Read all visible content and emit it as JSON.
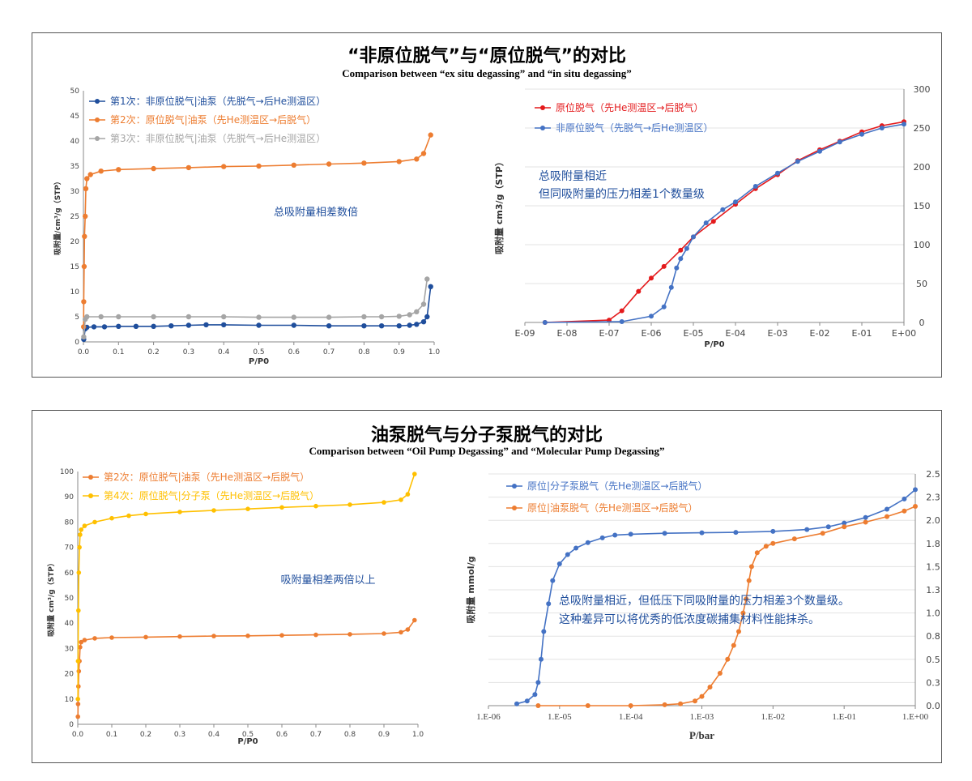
{
  "panels": [
    {
      "title_cn": "“非原位脱气”与“原位脱气”的对比",
      "title_en": "Comparison between “ex situ degassing” and “in situ degassing”"
    },
    {
      "title_cn": "油泵脱气与分子泵脱气的对比",
      "title_en": "Comparison between  “Oil Pump Degassing” and “Molecular Pump Degassing”"
    }
  ],
  "chart_data": [
    {
      "type": "line",
      "xlabel": "P/P0",
      "ylabel": "吸附量/cm³/g（STP）",
      "xlim": [
        0,
        1
      ],
      "ylim": [
        0,
        50
      ],
      "xticks": [
        "0.0",
        "0.1",
        "0.2",
        "0.3",
        "0.4",
        "0.5",
        "0.6",
        "0.7",
        "0.8",
        "0.9",
        "1.0"
      ],
      "yticks": [
        "0",
        "5",
        "10",
        "15",
        "20",
        "25",
        "30",
        "35",
        "40",
        "45",
        "50"
      ],
      "legend_position": "top-left",
      "annotation": "总吸附量相差数倍",
      "series": [
        {
          "name": "第1次：非原位脱气|油泵（先脱气→后He测温区）",
          "color": "#1f4e9c",
          "x": [
            0.001,
            0.005,
            0.01,
            0.03,
            0.06,
            0.1,
            0.15,
            0.2,
            0.25,
            0.3,
            0.35,
            0.4,
            0.5,
            0.6,
            0.7,
            0.8,
            0.85,
            0.9,
            0.93,
            0.95,
            0.97,
            0.98,
            0.99
          ],
          "y": [
            0.5,
            2.6,
            2.9,
            3.0,
            3.0,
            3.1,
            3.1,
            3.1,
            3.2,
            3.3,
            3.4,
            3.4,
            3.3,
            3.3,
            3.2,
            3.2,
            3.2,
            3.2,
            3.3,
            3.5,
            4.0,
            5.0,
            11.0
          ]
        },
        {
          "name": "第2次：原位脱气|油泵（先He测温区→后脱气）",
          "color": "#ed7d31",
          "x": [
            0.0005,
            0.001,
            0.002,
            0.003,
            0.005,
            0.007,
            0.01,
            0.02,
            0.05,
            0.1,
            0.2,
            0.3,
            0.4,
            0.5,
            0.6,
            0.7,
            0.8,
            0.9,
            0.95,
            0.97,
            0.99
          ],
          "y": [
            3.0,
            8.0,
            15.0,
            21.0,
            25.0,
            30.5,
            32.5,
            33.3,
            34.0,
            34.3,
            34.5,
            34.7,
            34.9,
            35.0,
            35.2,
            35.4,
            35.6,
            35.9,
            36.4,
            37.5,
            41.2
          ]
        },
        {
          "name": "第3次：非原位脱气|油泵（先脱气→后He测温区）",
          "color": "#a5a5a5",
          "x": [
            0.001,
            0.005,
            0.01,
            0.05,
            0.1,
            0.2,
            0.3,
            0.4,
            0.5,
            0.6,
            0.7,
            0.8,
            0.85,
            0.9,
            0.93,
            0.95,
            0.97,
            0.98
          ],
          "y": [
            1.0,
            4.5,
            5.0,
            5.0,
            5.0,
            5.0,
            5.0,
            5.0,
            4.9,
            4.9,
            4.9,
            5.0,
            5.0,
            5.1,
            5.4,
            6.0,
            7.5,
            12.5
          ]
        }
      ]
    },
    {
      "type": "line",
      "xlabel": "P/P0",
      "ylabel": "吸附量  cm3/g（STP）",
      "xscale": "log",
      "xlim": [
        1e-09,
        1
      ],
      "ylim": [
        0,
        300
      ],
      "xticks": [
        "E-09",
        "E-08",
        "E-07",
        "E-06",
        "E-05",
        "E-04",
        "E-03",
        "E-02",
        "E-01",
        "E+00"
      ],
      "yticks": [
        "0",
        "50",
        "100",
        "150",
        "200",
        "250",
        "300"
      ],
      "legend_position": "top-left",
      "annotation": [
        "总吸附量相近",
        "但同吸附量的压力相差1个数量级"
      ],
      "series": [
        {
          "name": "原位脱气（先He测温区→后脱气）",
          "color": "#e41a1c",
          "x": [
            3e-09,
            1e-07,
            2e-07,
            5e-07,
            1e-06,
            2e-06,
            5e-06,
            1e-05,
            3e-05,
            0.0001,
            0.0003,
            0.001,
            0.003,
            0.01,
            0.03,
            0.1,
            0.3,
            1
          ],
          "y": [
            0,
            3,
            15,
            40,
            57,
            72,
            93,
            110,
            130,
            152,
            172,
            190,
            208,
            222,
            233,
            245,
            253,
            258
          ]
        },
        {
          "name": "非原位脱气（先脱气→后He测温区）",
          "color": "#4472c4",
          "x": [
            3e-09,
            2e-07,
            1e-06,
            2e-06,
            3e-06,
            4e-06,
            5e-06,
            7e-06,
            1e-05,
            2e-05,
            5e-05,
            0.0001,
            0.0003,
            0.001,
            0.003,
            0.01,
            0.03,
            0.1,
            0.3,
            1
          ],
          "y": [
            0,
            1,
            8,
            20,
            45,
            70,
            82,
            95,
            110,
            128,
            145,
            155,
            175,
            192,
            207,
            220,
            232,
            242,
            250,
            255
          ]
        }
      ]
    },
    {
      "type": "line",
      "xlabel": "P/P0",
      "ylabel": "吸附量  cm³/g（STP）",
      "xlim": [
        0,
        1
      ],
      "ylim": [
        0,
        100
      ],
      "xticks": [
        "0.0",
        "0.1",
        "0.2",
        "0.3",
        "0.4",
        "0.5",
        "0.6",
        "0.7",
        "0.8",
        "0.9",
        "1.0"
      ],
      "yticks": [
        "0",
        "10",
        "20",
        "30",
        "40",
        "50",
        "60",
        "70",
        "80",
        "90",
        "100"
      ],
      "legend_position": "top-left",
      "annotation": "吸附量相差两倍以上",
      "series": [
        {
          "name": "第2次：原位脱气|油泵（先He测温区→后脱气）",
          "color": "#ed7d31",
          "x": [
            0.0005,
            0.001,
            0.002,
            0.003,
            0.005,
            0.007,
            0.01,
            0.02,
            0.05,
            0.1,
            0.2,
            0.3,
            0.4,
            0.5,
            0.6,
            0.7,
            0.8,
            0.9,
            0.95,
            0.97,
            0.99
          ],
          "y": [
            3.0,
            8.0,
            15.0,
            21.0,
            25.0,
            30.5,
            32.5,
            33.3,
            34.0,
            34.3,
            34.5,
            34.7,
            34.9,
            35.0,
            35.2,
            35.4,
            35.6,
            35.9,
            36.4,
            37.5,
            41.2
          ]
        },
        {
          "name": "第4次：原位脱气|分子泵（先He测温区→后脱气）",
          "color": "#ffc000",
          "x": [
            0.0005,
            0.001,
            0.002,
            0.003,
            0.005,
            0.007,
            0.01,
            0.02,
            0.05,
            0.1,
            0.15,
            0.2,
            0.3,
            0.4,
            0.5,
            0.6,
            0.7,
            0.8,
            0.9,
            0.95,
            0.97,
            0.99
          ],
          "y": [
            10,
            25,
            45,
            60,
            70,
            75,
            77,
            78.5,
            80,
            81.5,
            82.5,
            83.2,
            84,
            84.6,
            85.2,
            85.8,
            86.3,
            86.9,
            87.8,
            88.8,
            91,
            99
          ]
        }
      ]
    },
    {
      "type": "line",
      "xlabel": "P/bar",
      "ylabel": "吸附量    mmol/g",
      "xscale": "log",
      "xlim": [
        1e-06,
        1
      ],
      "ylim": [
        0,
        2.5
      ],
      "xticks": [
        "1.E-06",
        "1.E-05",
        "1.E-04",
        "1.E-03",
        "1.E-02",
        "1.E-01",
        "1.E+00"
      ],
      "yticks": [
        "0.0",
        "0.3",
        "0.5",
        "0.8",
        "1.0",
        "1.3",
        "1.5",
        "1.8",
        "2.0",
        "2.3",
        "2.5"
      ],
      "legend_position": "top-left",
      "annotation": [
        "总吸附量相近，但低压下同吸附量的压力相差3个数量级。",
        "这种差异可以将优秀的低浓度碳捕集材料性能抹杀。"
      ],
      "series": [
        {
          "name": "原位|分子泵脱气（先He测温区→后脱气）",
          "color": "#4472c4",
          "x": [
            2.5e-06,
            3.5e-06,
            4.5e-06,
            5e-06,
            5.5e-06,
            6e-06,
            7e-06,
            8e-06,
            1e-05,
            1.3e-05,
            1.7e-05,
            2.5e-05,
            4e-05,
            6e-05,
            0.0001,
            0.0003,
            0.001,
            0.003,
            0.01,
            0.03,
            0.06,
            0.1,
            0.2,
            0.4,
            0.7,
            1
          ],
          "y": [
            0.02,
            0.05,
            0.12,
            0.25,
            0.5,
            0.8,
            1.1,
            1.35,
            1.53,
            1.63,
            1.7,
            1.76,
            1.81,
            1.84,
            1.85,
            1.86,
            1.865,
            1.87,
            1.88,
            1.9,
            1.93,
            1.97,
            2.03,
            2.12,
            2.23,
            2.33
          ]
        },
        {
          "name": "原位|油泵脱气（先He测温区→后脱气）",
          "color": "#ed7d31",
          "x": [
            5e-06,
            2.5e-05,
            0.0001,
            0.0003,
            0.0005,
            0.0008,
            0.001,
            0.0013,
            0.0018,
            0.0023,
            0.0028,
            0.0033,
            0.0038,
            0.0042,
            0.0046,
            0.005,
            0.006,
            0.008,
            0.01,
            0.02,
            0.05,
            0.1,
            0.2,
            0.4,
            0.7,
            1
          ],
          "y": [
            0.0,
            0.0,
            0.0,
            0.01,
            0.02,
            0.05,
            0.1,
            0.2,
            0.35,
            0.5,
            0.65,
            0.8,
            1.0,
            1.15,
            1.35,
            1.5,
            1.65,
            1.72,
            1.75,
            1.8,
            1.86,
            1.93,
            1.98,
            2.04,
            2.1,
            2.15
          ]
        }
      ]
    }
  ]
}
